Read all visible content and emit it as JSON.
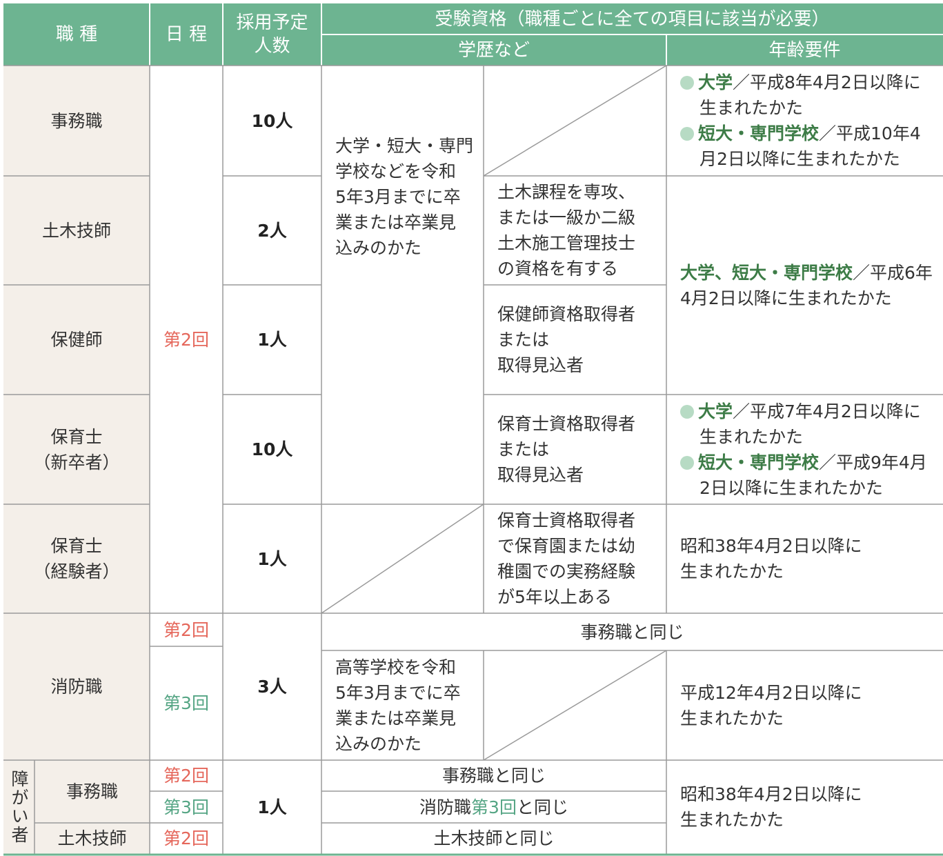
{
  "header": {
    "job": "職 種",
    "schedule": "日 程",
    "count": [
      "採用予定",
      "人数"
    ],
    "qualification": "受験資格（職種ごとに全ての項目に該当が必要）",
    "education": "学歴など",
    "age": "年齢要件"
  },
  "jobs": [
    {
      "name": [
        "事務職"
      ],
      "count": "10人"
    },
    {
      "name": [
        "土木技師"
      ],
      "count": "2人"
    },
    {
      "name": [
        "保健師"
      ],
      "count": "1人"
    },
    {
      "name": [
        "保育士",
        "（新卒者）"
      ],
      "count": "10人"
    },
    {
      "name": [
        "保育士",
        "（経験者）"
      ],
      "count": "1人"
    }
  ],
  "schedule_main": "第2回",
  "education_university": [
    "大学・短大・専門",
    "学校などを令和",
    "5年3月までに卒",
    "業または卒業見",
    "込みのかた"
  ],
  "requirements": {
    "civil": [
      "土木課程を専攻、",
      "または一級か二級",
      "土木施工管理技士",
      "の資格を有する"
    ],
    "nurse": [
      "保健師資格取得者",
      "または",
      "取得見込者"
    ],
    "childcare_new": [
      "保育士資格取得者",
      "または",
      "取得見込者"
    ],
    "childcare_exp": [
      "保育士資格取得者",
      "で保育園または幼",
      "稚園での実務経験",
      "が5年以上ある"
    ]
  },
  "age": {
    "clerk": [
      {
        "label": "大学",
        "text": "／平成8年4月2日以降に生まれたかた"
      },
      {
        "label": "短大・専門学校",
        "text": "／平成10年4月2日以降に生まれたかた"
      }
    ],
    "civil_nurse": {
      "label": "大学、短大・専門学校",
      "text": "／平成6年4月2日以降に生まれたかた"
    },
    "childcare_new": [
      {
        "label": "大学",
        "text": "／平成7年4月2日以降に生まれたかた"
      },
      {
        "label": "短大・専門学校",
        "text": "／平成9年4月2日以降に生まれたかた"
      }
    ],
    "childcare_exp": [
      "昭和38年4月2日以降に",
      "生まれたかた"
    ]
  },
  "fire": {
    "name": "消防職",
    "count": "3人",
    "schedule": [
      "第2回",
      "第3回"
    ],
    "same": "事務職と同じ",
    "education": [
      "高等学校を令和",
      "5年3月までに卒",
      "業または卒業見",
      "込みのかた"
    ],
    "age": [
      "平成12年4月2日以降に",
      "生まれたかた"
    ]
  },
  "disabled": {
    "label": "障がい者",
    "count": "1人",
    "age": [
      "昭和38年4月2日以降に",
      "生まれたかた"
    ],
    "rows": [
      {
        "job": "事務職",
        "schedule": "第2回",
        "requirement": [
          "事務職と同じ"
        ]
      },
      {
        "schedule": "第3回",
        "requirement": [
          "消防職",
          "第3回",
          "と同じ"
        ]
      },
      {
        "job": "土木技師",
        "schedule": "第2回",
        "requirement": [
          "土木技師と同じ"
        ]
      }
    ]
  }
}
